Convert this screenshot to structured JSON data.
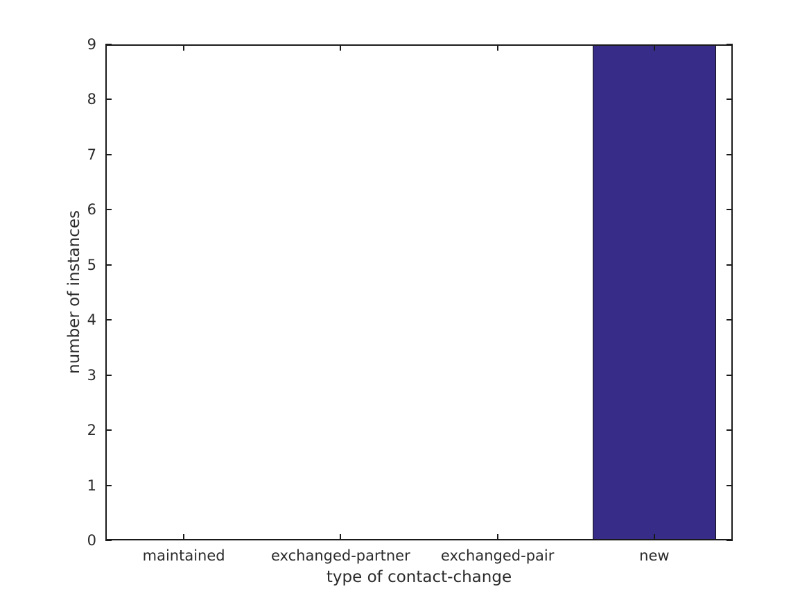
{
  "chart_data": {
    "type": "bar",
    "title": "",
    "xlabel": "type of contact-change",
    "ylabel": "number of instances",
    "categories": [
      "maintained",
      "exchanged-partner",
      "exchanged-pair",
      "new"
    ],
    "values": [
      0,
      0,
      0,
      9
    ],
    "ylim": [
      0,
      9
    ],
    "yticks": [
      "0",
      "1",
      "2",
      "3",
      "4",
      "5",
      "6",
      "7",
      "8",
      "9"
    ],
    "bar_color": "#372d88",
    "bar_edge_color": "#111111",
    "axis_color": "#1a1a1a",
    "text_color": "#2b2b2b",
    "bar_width_fraction": 0.79,
    "grid": false,
    "legend": null
  }
}
